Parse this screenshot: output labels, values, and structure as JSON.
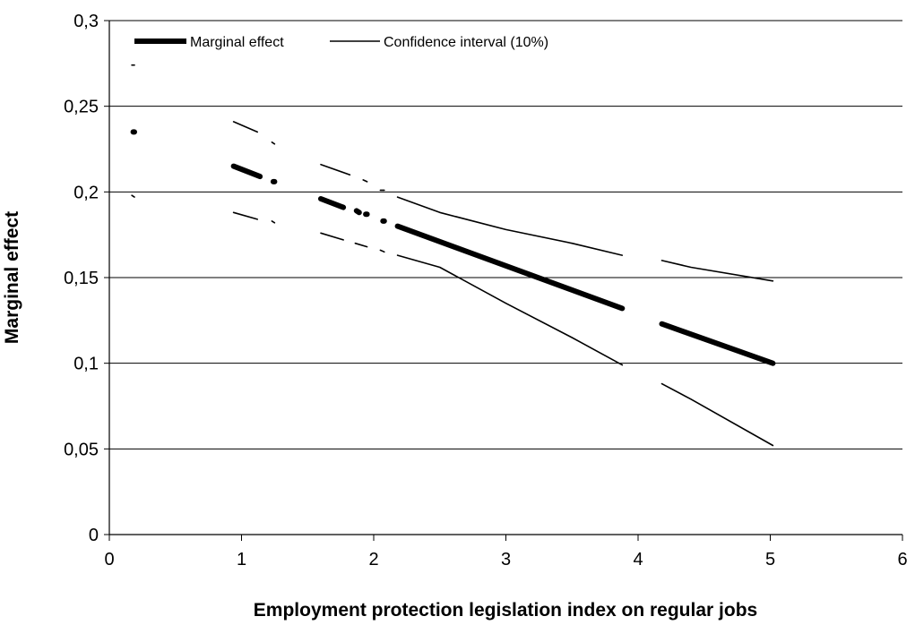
{
  "chart_data": {
    "type": "line",
    "title": "",
    "xlabel": "Employment protection legislation index on regular jobs",
    "ylabel": "Marginal effect",
    "xlim": [
      0,
      6
    ],
    "ylim": [
      0,
      0.3
    ],
    "x_ticks": [
      "0",
      "1",
      "2",
      "3",
      "4",
      "5",
      "6"
    ],
    "y_ticks": [
      "0",
      "0,05",
      "0,1",
      "0,15",
      "0,2",
      "0,25",
      "0,3"
    ],
    "grid": "horizontal",
    "legend_position": "top-left",
    "series": [
      {
        "name": "Marginal effect",
        "style": "thick",
        "segments": [
          [
            [
              0.18,
              0.235
            ],
            [
              0.19,
              0.235
            ]
          ],
          [
            [
              0.94,
              0.215
            ],
            [
              1.14,
              0.209
            ]
          ],
          [
            [
              1.24,
              0.206
            ],
            [
              1.25,
              0.206
            ]
          ],
          [
            [
              1.6,
              0.196
            ],
            [
              1.77,
              0.191
            ]
          ],
          [
            [
              1.87,
              0.189
            ],
            [
              1.89,
              0.188
            ]
          ],
          [
            [
              1.94,
              0.187
            ],
            [
              1.95,
              0.187
            ]
          ],
          [
            [
              2.07,
              0.183
            ],
            [
              2.08,
              0.183
            ]
          ],
          [
            [
              2.18,
              0.18
            ],
            [
              3.88,
              0.132
            ]
          ],
          [
            [
              4.18,
              0.123
            ],
            [
              5.02,
              0.1
            ]
          ]
        ]
      },
      {
        "name": "Confidence interval (10%)",
        "style": "thin",
        "segments": [
          [
            [
              0.17,
              0.274
            ],
            [
              0.19,
              0.274
            ]
          ],
          [
            [
              0.94,
              0.241
            ],
            [
              1.12,
              0.235
            ]
          ],
          [
            [
              1.23,
              0.229
            ],
            [
              1.25,
              0.228
            ]
          ],
          [
            [
              1.6,
              0.216
            ],
            [
              1.82,
              0.21
            ]
          ],
          [
            [
              1.92,
              0.207
            ],
            [
              1.95,
              0.206
            ]
          ],
          [
            [
              2.05,
              0.201
            ],
            [
              2.08,
              0.201
            ]
          ],
          [
            [
              2.18,
              0.197
            ],
            [
              2.5,
              0.188
            ],
            [
              3.0,
              0.178
            ],
            [
              3.5,
              0.17
            ],
            [
              3.88,
              0.163
            ]
          ],
          [
            [
              4.18,
              0.16
            ],
            [
              4.4,
              0.156
            ],
            [
              5.02,
              0.148
            ]
          ],
          [
            [
              0.17,
              0.198
            ],
            [
              0.19,
              0.197
            ]
          ],
          [
            [
              0.94,
              0.188
            ],
            [
              1.12,
              0.184
            ]
          ],
          [
            [
              1.23,
              0.183
            ],
            [
              1.25,
              0.182
            ]
          ],
          [
            [
              1.6,
              0.176
            ],
            [
              1.77,
              0.172
            ]
          ],
          [
            [
              1.86,
              0.17
            ],
            [
              1.95,
              0.168
            ]
          ],
          [
            [
              2.05,
              0.166
            ],
            [
              2.08,
              0.165
            ]
          ],
          [
            [
              2.18,
              0.163
            ],
            [
              2.5,
              0.156
            ],
            [
              3.0,
              0.135
            ],
            [
              3.5,
              0.115
            ],
            [
              3.88,
              0.099
            ]
          ],
          [
            [
              4.18,
              0.088
            ],
            [
              4.4,
              0.079
            ],
            [
              5.02,
              0.052
            ]
          ]
        ]
      }
    ]
  }
}
